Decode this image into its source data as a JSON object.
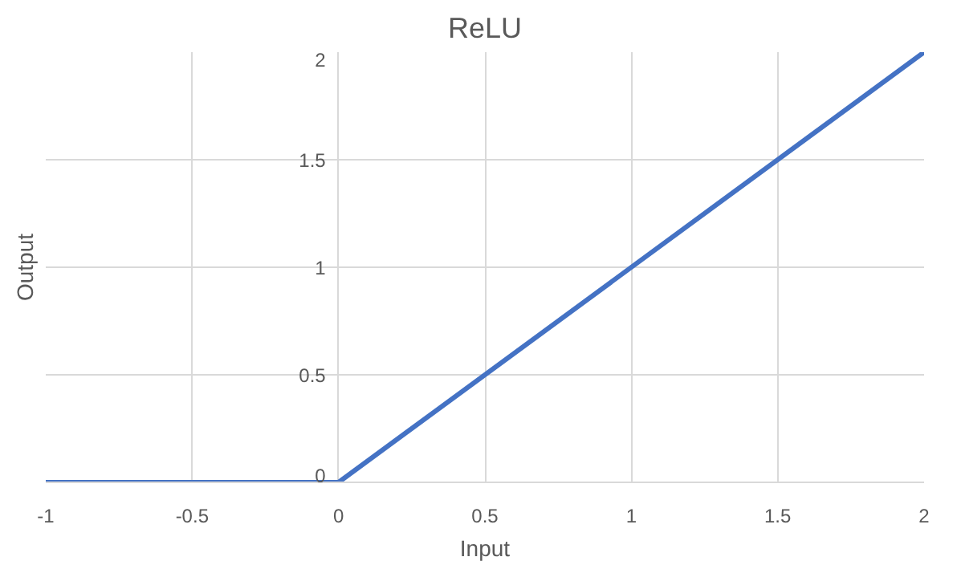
{
  "chart_data": {
    "type": "line",
    "title": "ReLU",
    "xlabel": "Input",
    "ylabel": "Output",
    "x": [
      -1,
      0,
      2
    ],
    "series": [
      {
        "color": "#4472c4",
        "values": [
          0,
          0,
          2
        ]
      }
    ],
    "xlim": [
      -1,
      2
    ],
    "ylim": [
      0,
      2
    ],
    "xticks": [
      -1,
      -0.5,
      0,
      0.5,
      1,
      1.5,
      2
    ],
    "yticks": [
      0,
      0.5,
      1,
      1.5,
      2
    ],
    "grid": true,
    "marker": "none",
    "line_style": "solid"
  }
}
